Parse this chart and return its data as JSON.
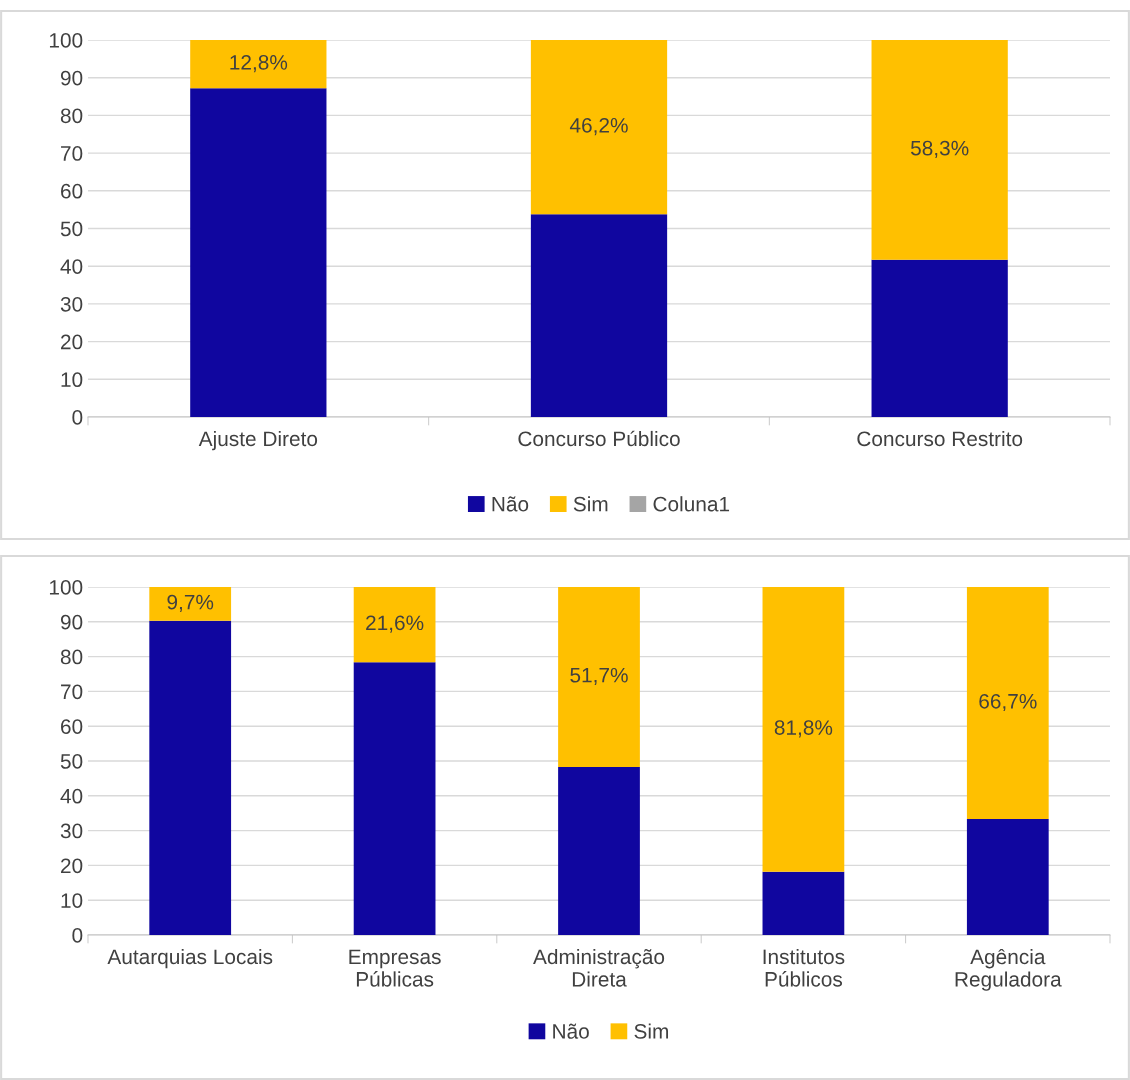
{
  "chart_data": [
    {
      "type": "bar",
      "stacked": true,
      "categories": [
        "Ajuste Direto",
        "Concurso Público",
        "Concurso Restrito"
      ],
      "ylim": [
        0,
        100
      ],
      "yticks": [
        0,
        10,
        20,
        30,
        40,
        50,
        60,
        70,
        80,
        90,
        100
      ],
      "grid": "y",
      "legend": "bottom",
      "series": [
        {
          "name": "Não",
          "color": "#10069f",
          "values": [
            87.2,
            53.8,
            41.7
          ]
        },
        {
          "name": "Sim",
          "color": "#ffc000",
          "values": [
            12.8,
            46.2,
            58.3
          ],
          "value_labels": [
            "12,8%",
            "46,2%",
            "58,3%"
          ]
        },
        {
          "name": "Coluna1",
          "color": "#a5a5a5",
          "values": [
            null,
            null,
            null
          ]
        }
      ]
    },
    {
      "type": "bar",
      "stacked": true,
      "categories": [
        "Autarquias Locais",
        "Empresas\nPúblicas",
        "Administração\nDireta",
        "Institutos\nPúblicos",
        "Agência\nReguladora"
      ],
      "ylim": [
        0,
        100
      ],
      "yticks": [
        0,
        10,
        20,
        30,
        40,
        50,
        60,
        70,
        80,
        90,
        100
      ],
      "grid": "y",
      "legend": "bottom",
      "series": [
        {
          "name": "Não",
          "color": "#10069f",
          "values": [
            90.3,
            78.4,
            48.3,
            18.2,
            33.3
          ]
        },
        {
          "name": "Sim",
          "color": "#ffc000",
          "values": [
            9.7,
            21.6,
            51.7,
            81.8,
            66.7
          ],
          "value_labels": [
            "9,7%",
            "21,6%",
            "51,7%",
            "81,8%",
            "66,7%"
          ]
        }
      ]
    }
  ]
}
